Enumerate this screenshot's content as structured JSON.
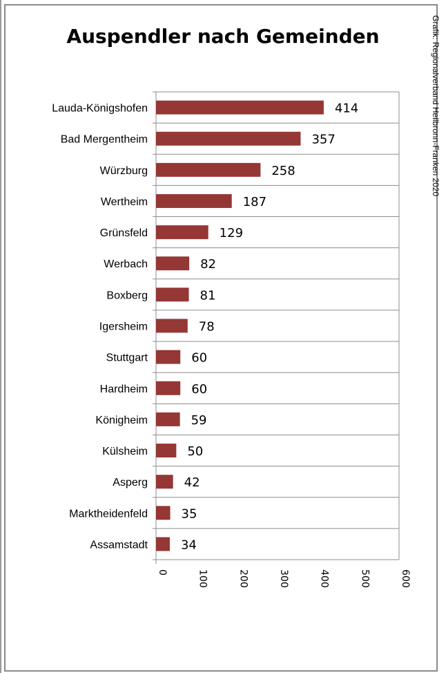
{
  "chart_data": {
    "type": "bar",
    "orientation": "horizontal",
    "title": "Auspendler nach Gemeinden",
    "credit": "Grafik: Regionalverband Heilbronn-Franken 2020",
    "categories": [
      "Lauda-Königshofen",
      "Bad Mergentheim",
      "Würzburg",
      "Wertheim",
      "Grünsfeld",
      "Werbach",
      "Boxberg",
      "Igersheim",
      "Stuttgart",
      "Hardheim",
      "Königheim",
      "Külsheim",
      "Asperg",
      "Marktheidenfeld",
      "Assamstadt"
    ],
    "values": [
      414,
      357,
      258,
      187,
      129,
      82,
      81,
      78,
      60,
      60,
      59,
      50,
      42,
      35,
      34
    ],
    "xlim": [
      0,
      600
    ],
    "xticks": [
      "0",
      "100",
      "200",
      "300",
      "400",
      "500",
      "600"
    ],
    "grid": true,
    "bar_color": "#953735"
  }
}
